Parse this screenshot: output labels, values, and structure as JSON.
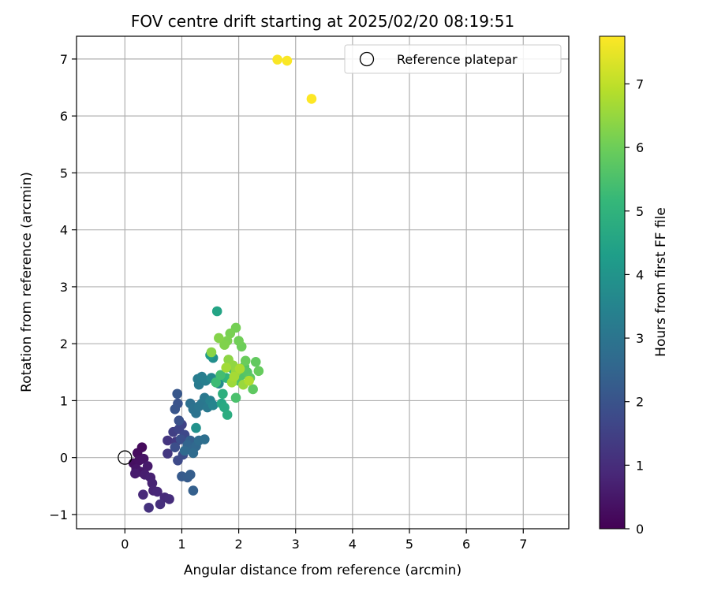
{
  "chart_data": {
    "type": "scatter",
    "title": "FOV centre drift starting at 2025/02/20 08:19:51",
    "xlabel": "Angular distance from reference (arcmin)",
    "ylabel": "Rotation from reference (arcmin)",
    "xlim": [
      -0.85,
      7.8
    ],
    "ylim": [
      -1.25,
      7.4
    ],
    "xticks": [
      0,
      1,
      2,
      3,
      4,
      5,
      6,
      7
    ],
    "yticks": [
      -1,
      0,
      1,
      2,
      3,
      4,
      5,
      6,
      7
    ],
    "grid": true,
    "legend": {
      "position": "upper right",
      "entries": [
        "Reference platepar"
      ]
    },
    "reference_point": {
      "name": "Reference platepar",
      "x": 0,
      "y": 0
    },
    "colorbar": {
      "label": "Hours from first FF file",
      "colormap": "viridis",
      "range": [
        0,
        7.75
      ],
      "ticks": [
        0,
        1,
        2,
        3,
        4,
        5,
        6,
        7
      ]
    },
    "points": [
      {
        "x": 0.3,
        "y": 0.18,
        "c": 0.2
      },
      {
        "x": 0.22,
        "y": 0.08,
        "c": 0.25
      },
      {
        "x": 0.15,
        "y": -0.1,
        "c": 0.3
      },
      {
        "x": 0.25,
        "y": -0.05,
        "c": 0.35
      },
      {
        "x": 0.33,
        "y": -0.02,
        "c": 0.4
      },
      {
        "x": 0.2,
        "y": -0.2,
        "c": 0.45
      },
      {
        "x": 0.28,
        "y": -0.25,
        "c": 0.5
      },
      {
        "x": 0.4,
        "y": -0.15,
        "c": 0.55
      },
      {
        "x": 0.18,
        "y": -0.28,
        "c": 0.6
      },
      {
        "x": 0.35,
        "y": -0.3,
        "c": 0.65
      },
      {
        "x": 0.45,
        "y": -0.35,
        "c": 0.7
      },
      {
        "x": 0.48,
        "y": -0.45,
        "c": 0.75
      },
      {
        "x": 0.5,
        "y": -0.58,
        "c": 0.8
      },
      {
        "x": 0.57,
        "y": -0.6,
        "c": 0.85
      },
      {
        "x": 0.32,
        "y": -0.65,
        "c": 0.9
      },
      {
        "x": 0.7,
        "y": -0.7,
        "c": 0.95
      },
      {
        "x": 0.78,
        "y": -0.73,
        "c": 1.0
      },
      {
        "x": 0.62,
        "y": -0.82,
        "c": 1.05
      },
      {
        "x": 0.42,
        "y": -0.88,
        "c": 1.1
      },
      {
        "x": 0.75,
        "y": 0.3,
        "c": 1.2
      },
      {
        "x": 0.75,
        "y": 0.07,
        "c": 1.25
      },
      {
        "x": 0.9,
        "y": 0.28,
        "c": 1.3
      },
      {
        "x": 0.85,
        "y": 0.45,
        "c": 1.45
      },
      {
        "x": 1.0,
        "y": 0.58,
        "c": 1.55
      },
      {
        "x": 0.95,
        "y": 0.5,
        "c": 1.6
      },
      {
        "x": 1.05,
        "y": 0.4,
        "c": 1.7
      },
      {
        "x": 0.93,
        "y": -0.05,
        "c": 1.75
      },
      {
        "x": 1.02,
        "y": 0.05,
        "c": 1.8
      },
      {
        "x": 0.88,
        "y": 0.18,
        "c": 1.85
      },
      {
        "x": 0.98,
        "y": 0.32,
        "c": 1.9
      },
      {
        "x": 0.95,
        "y": 0.65,
        "c": 1.95
      },
      {
        "x": 0.93,
        "y": 0.95,
        "c": 2.0
      },
      {
        "x": 0.88,
        "y": 0.85,
        "c": 2.05
      },
      {
        "x": 0.92,
        "y": 1.12,
        "c": 2.1
      },
      {
        "x": 1.0,
        "y": -0.33,
        "c": 2.2
      },
      {
        "x": 1.1,
        "y": -0.35,
        "c": 2.25
      },
      {
        "x": 1.15,
        "y": -0.3,
        "c": 2.3
      },
      {
        "x": 1.2,
        "y": -0.58,
        "c": 2.35
      },
      {
        "x": 1.15,
        "y": 0.3,
        "c": 2.4
      },
      {
        "x": 1.1,
        "y": 0.22,
        "c": 2.5
      },
      {
        "x": 1.2,
        "y": 0.15,
        "c": 2.55
      },
      {
        "x": 1.25,
        "y": 0.2,
        "c": 2.6
      },
      {
        "x": 1.05,
        "y": 0.12,
        "c": 2.65
      },
      {
        "x": 1.2,
        "y": 0.08,
        "c": 2.7
      },
      {
        "x": 1.3,
        "y": 0.3,
        "c": 2.75
      },
      {
        "x": 1.4,
        "y": 0.32,
        "c": 2.8
      },
      {
        "x": 1.15,
        "y": 0.95,
        "c": 2.85
      },
      {
        "x": 1.2,
        "y": 0.85,
        "c": 2.9
      },
      {
        "x": 1.25,
        "y": 0.78,
        "c": 2.95
      },
      {
        "x": 1.3,
        "y": 0.9,
        "c": 3.0
      },
      {
        "x": 1.35,
        "y": 0.95,
        "c": 3.05
      },
      {
        "x": 1.4,
        "y": 1.05,
        "c": 3.1
      },
      {
        "x": 1.45,
        "y": 0.88,
        "c": 3.15
      },
      {
        "x": 1.3,
        "y": 1.28,
        "c": 3.2
      },
      {
        "x": 1.28,
        "y": 1.38,
        "c": 3.25
      },
      {
        "x": 1.35,
        "y": 1.42,
        "c": 3.3
      },
      {
        "x": 1.42,
        "y": 1.35,
        "c": 3.35
      },
      {
        "x": 1.5,
        "y": 1.0,
        "c": 3.4
      },
      {
        "x": 1.55,
        "y": 0.92,
        "c": 3.5
      },
      {
        "x": 1.52,
        "y": 1.4,
        "c": 3.6
      },
      {
        "x": 1.6,
        "y": 1.35,
        "c": 3.7
      },
      {
        "x": 1.65,
        "y": 1.3,
        "c": 3.75
      },
      {
        "x": 1.55,
        "y": 1.75,
        "c": 3.8
      },
      {
        "x": 1.25,
        "y": 0.52,
        "c": 3.9
      },
      {
        "x": 1.5,
        "y": 1.8,
        "c": 4.2
      },
      {
        "x": 1.62,
        "y": 2.57,
        "c": 4.5
      },
      {
        "x": 1.7,
        "y": 0.95,
        "c": 4.6
      },
      {
        "x": 1.75,
        "y": 0.88,
        "c": 4.7
      },
      {
        "x": 1.8,
        "y": 0.75,
        "c": 4.8
      },
      {
        "x": 1.72,
        "y": 1.12,
        "c": 4.9
      },
      {
        "x": 1.78,
        "y": 1.4,
        "c": 5.0
      },
      {
        "x": 1.85,
        "y": 1.38,
        "c": 5.1
      },
      {
        "x": 1.9,
        "y": 1.55,
        "c": 5.2
      },
      {
        "x": 1.6,
        "y": 1.32,
        "c": 5.3
      },
      {
        "x": 1.68,
        "y": 1.45,
        "c": 5.4
      },
      {
        "x": 1.95,
        "y": 1.05,
        "c": 5.5
      },
      {
        "x": 2.0,
        "y": 1.35,
        "c": 5.55
      },
      {
        "x": 2.05,
        "y": 1.45,
        "c": 5.6
      },
      {
        "x": 2.1,
        "y": 1.6,
        "c": 5.65
      },
      {
        "x": 2.15,
        "y": 1.5,
        "c": 5.7
      },
      {
        "x": 2.2,
        "y": 1.4,
        "c": 5.75
      },
      {
        "x": 2.25,
        "y": 1.2,
        "c": 5.8
      },
      {
        "x": 2.3,
        "y": 1.68,
        "c": 5.85
      },
      {
        "x": 2.35,
        "y": 1.52,
        "c": 5.9
      },
      {
        "x": 2.12,
        "y": 1.7,
        "c": 5.95
      },
      {
        "x": 2.05,
        "y": 1.95,
        "c": 6.0
      },
      {
        "x": 2.0,
        "y": 2.05,
        "c": 6.05
      },
      {
        "x": 1.95,
        "y": 2.28,
        "c": 6.1
      },
      {
        "x": 1.85,
        "y": 2.18,
        "c": 6.15
      },
      {
        "x": 1.8,
        "y": 2.05,
        "c": 6.2
      },
      {
        "x": 1.75,
        "y": 1.98,
        "c": 6.25
      },
      {
        "x": 1.65,
        "y": 2.1,
        "c": 6.3
      },
      {
        "x": 1.52,
        "y": 1.85,
        "c": 6.35
      },
      {
        "x": 1.82,
        "y": 1.72,
        "c": 6.4
      },
      {
        "x": 1.9,
        "y": 1.62,
        "c": 6.45
      },
      {
        "x": 1.95,
        "y": 1.5,
        "c": 6.5
      },
      {
        "x": 2.08,
        "y": 1.28,
        "c": 6.55
      },
      {
        "x": 1.88,
        "y": 1.32,
        "c": 6.6
      },
      {
        "x": 1.78,
        "y": 1.58,
        "c": 6.65
      },
      {
        "x": 1.92,
        "y": 1.42,
        "c": 6.7
      },
      {
        "x": 2.02,
        "y": 1.56,
        "c": 6.75
      },
      {
        "x": 2.18,
        "y": 1.35,
        "c": 6.8
      },
      {
        "x": 2.68,
        "y": 6.99,
        "c": 7.7
      },
      {
        "x": 2.85,
        "y": 6.97,
        "c": 7.72
      },
      {
        "x": 3.28,
        "y": 6.3,
        "c": 7.75
      }
    ]
  }
}
